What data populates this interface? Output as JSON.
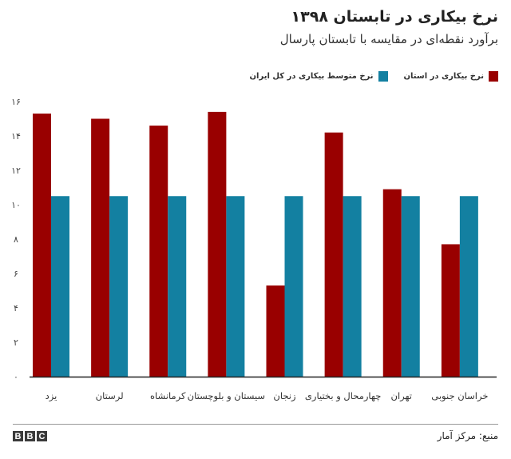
{
  "title": "نرخ بیکاری در تابستان ۱۳۹۸",
  "subtitle": "برآورد نقطه‌ای در مقایسه با تابستان پارسال",
  "source": "منبع: مرکز آمار",
  "logo": [
    "B",
    "B",
    "C"
  ],
  "colors": {
    "province": "#990000",
    "national": "#1380a1",
    "axis": "#222222"
  },
  "chart_data": {
    "type": "bar",
    "title": "نرخ بیکاری در تابستان ۱۳۹۸",
    "subtitle": "برآورد نقطه‌ای در مقایسه با تابستان پارسال",
    "xlabel": "",
    "ylabel": "",
    "ylim": [
      0,
      16
    ],
    "yticks": [
      0,
      2,
      4,
      6,
      8,
      10,
      12,
      14,
      16
    ],
    "ytick_labels": [
      "۰",
      "۲",
      "۴",
      "۶",
      "۸",
      "۱۰",
      "۱۲",
      "۱۴",
      "۱۶"
    ],
    "grid": false,
    "legend_position": "top-right",
    "categories": [
      "یزد",
      "لرستان",
      "کرمانشاه",
      "سیستان و بلوچستان",
      "زنجان",
      "چهارمحال و بختیاری",
      "تهران",
      "خراسان جنوبی"
    ],
    "series": [
      {
        "name": "نرخ بیکاری در استان",
        "color": "#990000",
        "values": [
          15.3,
          15.0,
          14.6,
          15.4,
          5.3,
          14.2,
          10.9,
          7.7
        ]
      },
      {
        "name": "نرخ متوسط بیکاری در کل ایران",
        "color": "#1380a1",
        "values": [
          10.5,
          10.5,
          10.5,
          10.5,
          10.5,
          10.5,
          10.5,
          10.5
        ]
      }
    ]
  }
}
